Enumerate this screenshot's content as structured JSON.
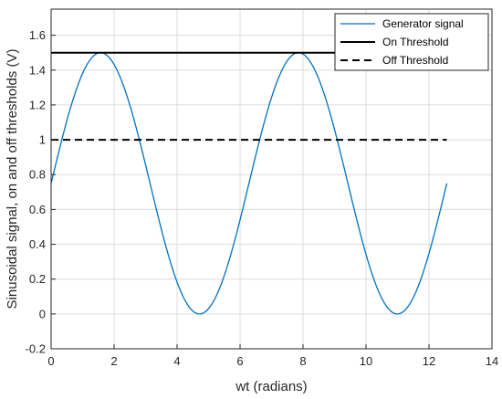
{
  "chart_data": {
    "type": "line",
    "title": "",
    "xlabel": "wt (radians)",
    "ylabel": "Sinusoidal signal, on and off thresholds (V)",
    "xlim": [
      0,
      14
    ],
    "ylim": [
      -0.2,
      1.75
    ],
    "xticks": [
      0,
      2,
      4,
      6,
      8,
      10,
      12,
      14
    ],
    "yticks": [
      -0.2,
      0,
      0.2,
      0.4,
      0.6,
      0.8,
      1,
      1.2,
      1.4,
      1.6
    ],
    "xtick_labels": [
      "0",
      "2",
      "4",
      "6",
      "8",
      "10",
      "12",
      "14"
    ],
    "ytick_labels": [
      "-0.2",
      "0",
      "0.2",
      "0.4",
      "0.6",
      "0.8",
      "1",
      "1.2",
      "1.4",
      "1.6"
    ],
    "grid": true,
    "legend_position": "top-right",
    "series": [
      {
        "name": "Generator signal",
        "color": "#0072BD",
        "style": "solid",
        "equation": "0.75 + 0.75*sin(x)",
        "x": [
          0,
          0.5,
          1,
          1.5708,
          2,
          2.5,
          3,
          3.5,
          4,
          4.7124,
          5,
          5.5,
          6,
          6.5,
          7,
          7.854,
          8.5,
          9,
          9.5,
          10,
          10.996,
          11.5,
          12,
          12.566
        ],
        "y": [
          0.75,
          1.11,
          1.38,
          1.5,
          1.43,
          1.2,
          0.86,
          0.49,
          0.18,
          0.0,
          0.03,
          0.2,
          0.54,
          0.91,
          1.24,
          1.5,
          1.35,
          1.06,
          0.69,
          0.34,
          0.0,
          0.12,
          0.31,
          0.75
        ]
      },
      {
        "name": "On Threshold",
        "color": "#000000",
        "style": "solid",
        "x": [
          0,
          12.566
        ],
        "y": [
          1.5,
          1.5
        ]
      },
      {
        "name": "Off Threshold",
        "color": "#000000",
        "style": "dashed",
        "x": [
          0,
          12.566
        ],
        "y": [
          1.0,
          1.0
        ]
      }
    ]
  }
}
